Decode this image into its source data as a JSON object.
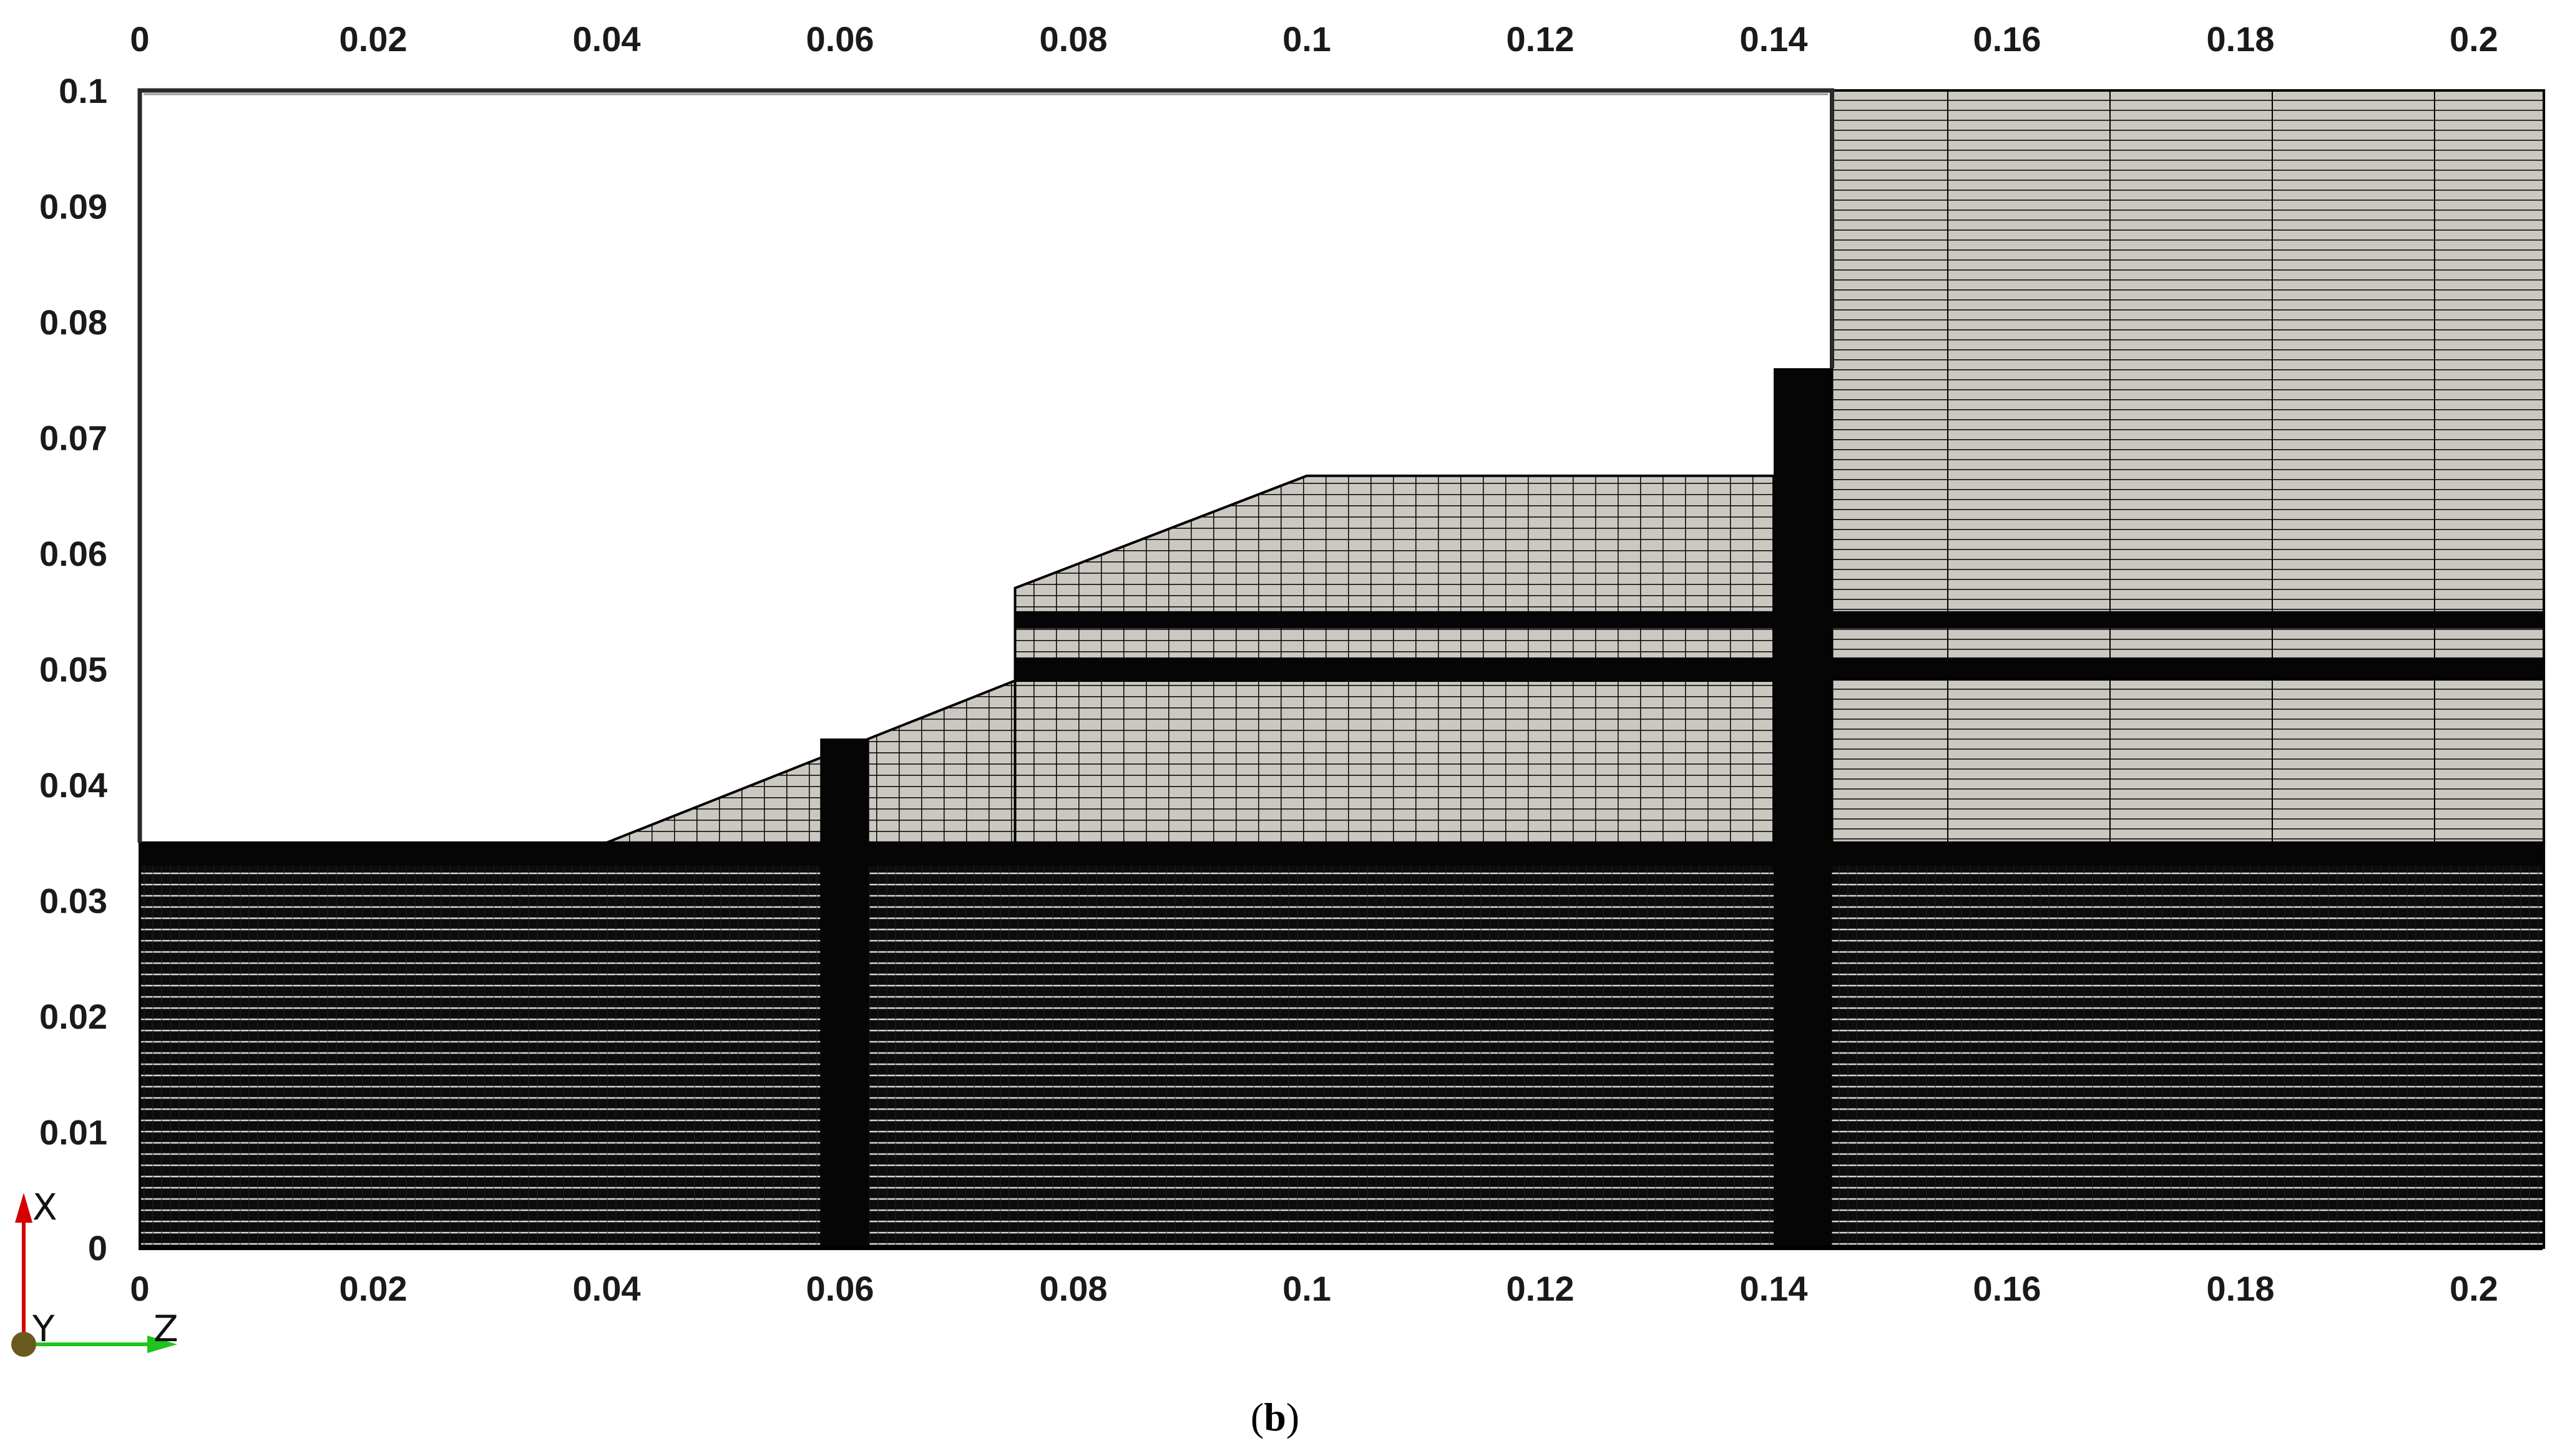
{
  "figure": {
    "caption_letter": "b",
    "colors": {
      "background": "#ffffff",
      "mesh_line": "#000000",
      "fluid_fill": "#cbc8c1",
      "frame": "#2a2a2a",
      "triad_x": "#d60000",
      "triad_z": "#1fc41f",
      "triad_origin": "#6b5a1e"
    },
    "orientation_triad": {
      "x_label": "X",
      "y_label": "Y",
      "z_label": "Z",
      "icons": [
        "x-axis-arrow-icon",
        "z-axis-arrow-icon",
        "y-axis-origin-dot-icon"
      ]
    }
  },
  "chart_data": {
    "type": "mesh",
    "x_axis": {
      "range": [
        0,
        0.206
      ],
      "ticks": [
        0,
        0.02,
        0.04,
        0.06,
        0.08,
        0.1,
        0.12,
        0.14,
        0.16,
        0.18,
        0.2
      ],
      "tick_labels": [
        "0",
        "0.02",
        "0.04",
        "0.06",
        "0.08",
        "0.1",
        "0.12",
        "0.14",
        "0.16",
        "0.18",
        "0.2"
      ],
      "shown_top_and_bottom": true
    },
    "y_axis": {
      "range": [
        0,
        0.1
      ],
      "ticks": [
        0,
        0.01,
        0.02,
        0.03,
        0.04,
        0.05,
        0.06,
        0.07,
        0.08,
        0.09,
        0.1
      ],
      "tick_labels": [
        "0",
        "0.01",
        "0.02",
        "0.03",
        "0.04",
        "0.05",
        "0.06",
        "0.07",
        "0.08",
        "0.09",
        "0.1"
      ]
    },
    "domain_outline": [
      [
        0,
        0.1
      ],
      [
        0.145,
        0.1
      ]
    ],
    "regions": [
      {
        "zone": "lower-channel",
        "x": [
          0,
          0.206
        ],
        "y": [
          0,
          0.035
        ],
        "fill": "dark-dense"
      },
      {
        "zone": "bank-rise",
        "polygon": [
          [
            0.04,
            0.035
          ],
          [
            0.075,
            0.049
          ],
          [
            0.075,
            0.035
          ]
        ],
        "fill": "grey-mesh"
      },
      {
        "zone": "middle-terrace",
        "x": [
          0.075,
          0.14
        ],
        "y": [
          0.035,
          0.049
        ],
        "fill": "grey-mesh"
      },
      {
        "zone": "upper-slope",
        "polygon": [
          [
            0.075,
            0.057
          ],
          [
            0.1,
            0.0667
          ],
          [
            0.14,
            0.0667
          ],
          [
            0.14,
            0.049
          ],
          [
            0.075,
            0.049
          ]
        ],
        "fill": "grey-mesh"
      },
      {
        "zone": "right-fluid",
        "x": [
          0.145,
          0.206
        ],
        "y": [
          0.035,
          0.1
        ],
        "fill": "grey-mesh"
      }
    ],
    "dense_bands": [
      {
        "x": [
          0,
          0.206
        ],
        "y": [
          0.033,
          0.035
        ]
      },
      {
        "x": [
          0.075,
          0.206
        ],
        "y": [
          0.049,
          0.051
        ]
      },
      {
        "x": [
          0.075,
          0.206
        ],
        "y": [
          0.0535,
          0.055
        ]
      },
      {
        "x": [
          0.0583,
          0.0625
        ],
        "y": [
          0,
          0.044
        ]
      },
      {
        "x": [
          0.14,
          0.145
        ],
        "y": [
          0,
          0.076
        ]
      }
    ]
  }
}
